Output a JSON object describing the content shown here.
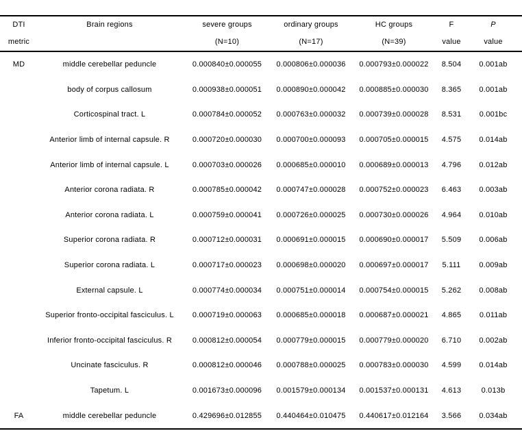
{
  "colors": {
    "text": "#000000",
    "background": "#ffffff",
    "rule": "#000000"
  },
  "table": {
    "header": {
      "metric_line1": "DTI",
      "metric_line2": "metric",
      "regions": "Brain regions",
      "severe_line1": "severe groups",
      "severe_line2": "(N=10)",
      "ordinary_line1": "ordinary groups",
      "ordinary_line2": "(N=17)",
      "hc_line1": "HC groups",
      "hc_line2": "(N=39)",
      "f_line1": "F",
      "f_line2": "value",
      "p_line1": "P",
      "p_line2": "value"
    },
    "rows": [
      {
        "metric": "MD",
        "region": "middle cerebellar peduncle",
        "severe": "0.000840±0.000055",
        "ordinary": "0.000806±0.000036",
        "hc": "0.000793±0.000022",
        "f": "8.504",
        "p": "0.001ab"
      },
      {
        "metric": "",
        "region": "body of corpus callosum",
        "severe": "0.000938±0.000051",
        "ordinary": "0.000890±0.000042",
        "hc": "0.000885±0.000030",
        "f": "8.365",
        "p": "0.001ab"
      },
      {
        "metric": "",
        "region": "Corticospinal tract. L",
        "severe": "0.000784±0.000052",
        "ordinary": "0.000763±0.000032",
        "hc": "0.000739±0.000028",
        "f": "8.531",
        "p": "0.001bc"
      },
      {
        "metric": "",
        "region": "Anterior limb of internal capsule. R",
        "severe": "0.000720±0.000030",
        "ordinary": "0.000700±0.000093",
        "hc": "0.000705±0.000015",
        "f": "4.575",
        "p": "0.014ab"
      },
      {
        "metric": "",
        "region": "Anterior limb of internal capsule. L",
        "severe": "0.000703±0.000026",
        "ordinary": "0.000685±0.000010",
        "hc": "0.000689±0.000013",
        "f": "4.796",
        "p": "0.012ab"
      },
      {
        "metric": "",
        "region": "Anterior corona radiata. R",
        "severe": "0.000785±0.000042",
        "ordinary": "0.000747±0.000028",
        "hc": "0.000752±0.000023",
        "f": "6.463",
        "p": "0.003ab"
      },
      {
        "metric": "",
        "region": "Anterior corona radiata. L",
        "severe": "0.000759±0.000041",
        "ordinary": "0.000726±0.000025",
        "hc": "0.000730±0.000026",
        "f": "4.964",
        "p": "0.010ab"
      },
      {
        "metric": "",
        "region": "Superior corona radiata. R",
        "severe": "0.000712±0.000031",
        "ordinary": "0.000691±0.000015",
        "hc": "0.000690±0.000017",
        "f": "5.509",
        "p": "0.006ab"
      },
      {
        "metric": "",
        "region": "Superior corona radiata. L",
        "severe": "0.000717±0.000023",
        "ordinary": "0.000698±0.000020",
        "hc": "0.000697±0.000017",
        "f": "5.111",
        "p": "0.009ab"
      },
      {
        "metric": "",
        "region": "External capsule. L",
        "severe": "0.000774±0.000034",
        "ordinary": "0.000751±0.000014",
        "hc": "0.000754±0.000015",
        "f": "5.262",
        "p": "0.008ab"
      },
      {
        "metric": "",
        "region": "Superior fronto-occipital fasciculus. L",
        "severe": "0.000719±0.000063",
        "ordinary": "0.000685±0.000018",
        "hc": "0.000687±0.000021",
        "f": "4.865",
        "p": "0.011ab"
      },
      {
        "metric": "",
        "region": "Inferior fronto-occipital fasciculus. R",
        "severe": "0.000812±0.000054",
        "ordinary": "0.000779±0.000015",
        "hc": "0.000779±0.000020",
        "f": "6.710",
        "p": "0.002ab"
      },
      {
        "metric": "",
        "region": "Uncinate fasciculus. R",
        "severe": "0.000812±0.000046",
        "ordinary": "0.000788±0.000025",
        "hc": "0.000783±0.000030",
        "f": "4.599",
        "p": "0.014ab"
      },
      {
        "metric": "",
        "region": "Tapetum. L",
        "severe": "0.001673±0.000096",
        "ordinary": "0.001579±0.000134",
        "hc": "0.001537±0.000131",
        "f": "4.613",
        "p": "0.013b"
      },
      {
        "metric": "FA",
        "region": "middle cerebellar peduncle",
        "severe": "0.429696±0.012855",
        "ordinary": "0.440464±0.010475",
        "hc": "0.440617±0.012164",
        "f": "3.566",
        "p": "0.034ab"
      }
    ]
  }
}
